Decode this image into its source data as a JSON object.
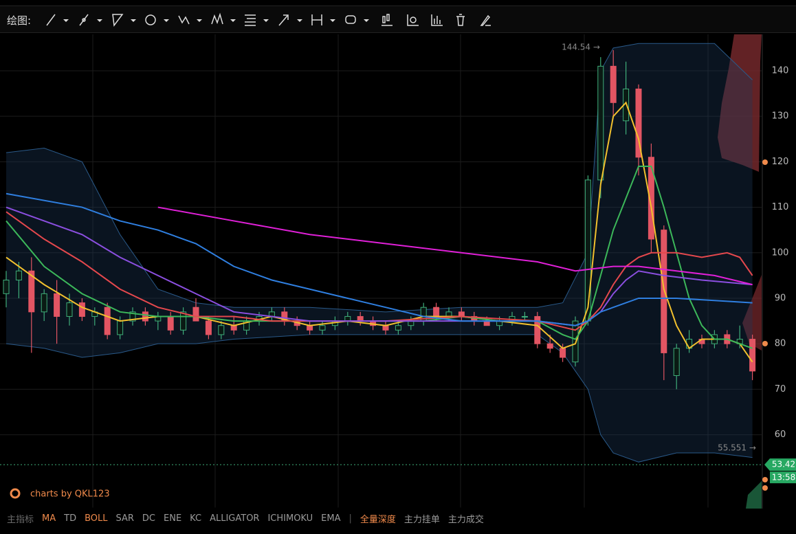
{
  "toolbar": {
    "label": "绘图:"
  },
  "chart_data": {
    "type": "candlestick",
    "ylim": [
      44,
      148
    ],
    "yticks": [
      60,
      70,
      80,
      90,
      100,
      110,
      120,
      130,
      140
    ],
    "grid": true,
    "up_color": "#3fae7a",
    "down_color": "#e25563",
    "open": [
      91,
      94,
      96,
      87,
      91,
      86,
      89,
      86,
      88,
      82,
      85,
      87,
      85,
      86,
      83,
      88,
      85,
      82,
      84,
      83,
      85,
      86,
      87,
      85,
      84,
      83,
      84,
      85,
      86,
      85,
      84,
      83,
      84,
      85,
      88,
      86,
      87,
      86,
      85,
      84,
      85,
      86,
      86,
      80,
      79,
      76,
      85,
      116,
      141,
      129,
      136,
      121,
      105,
      73,
      79,
      81,
      80,
      82,
      80,
      81
    ],
    "high": [
      96,
      98,
      99,
      92,
      94,
      91,
      90,
      88,
      89,
      86,
      88,
      88,
      87,
      87,
      88,
      90,
      86,
      85,
      86,
      86,
      87,
      88,
      88,
      86,
      85,
      85,
      86,
      87,
      87,
      86,
      85,
      85,
      86,
      89,
      89,
      88,
      88,
      87,
      86,
      86,
      87,
      87,
      87,
      82,
      80,
      86,
      117,
      143,
      144.54,
      142,
      137,
      124,
      106,
      80,
      83,
      82,
      83,
      83,
      84,
      82
    ],
    "low": [
      88,
      90,
      78,
      85,
      80,
      84,
      85,
      84,
      81,
      81,
      84,
      84,
      83,
      82,
      82,
      85,
      81,
      81,
      82,
      82,
      84,
      85,
      84,
      83,
      82,
      82,
      83,
      84,
      84,
      83,
      82,
      82,
      83,
      84,
      85,
      85,
      85,
      84,
      84,
      83,
      84,
      85,
      79,
      78,
      76,
      75,
      84,
      112,
      130,
      126,
      117,
      100,
      72,
      70,
      78,
      79,
      79,
      79,
      79,
      72
    ],
    "close": [
      94,
      96,
      87,
      91,
      86,
      89,
      86,
      87,
      82,
      85,
      87,
      85,
      86,
      83,
      87,
      85,
      82,
      84,
      83,
      85,
      86,
      87,
      85,
      84,
      83,
      84,
      85,
      86,
      85,
      84,
      83,
      84,
      85,
      88,
      86,
      87,
      86,
      85,
      84,
      85,
      86,
      86,
      80,
      79,
      77,
      85,
      116,
      141,
      133,
      136,
      121,
      103,
      78,
      79,
      81,
      80,
      82,
      80,
      81,
      74
    ],
    "lines": [
      {
        "color": "#f2c12e",
        "x": [
          0,
          3,
          6,
          9,
          12,
          15,
          18,
          21,
          24,
          27,
          30,
          33,
          36,
          39,
          42,
          44,
          45,
          46,
          47,
          48,
          49,
          50,
          51,
          52,
          53,
          54,
          55,
          56,
          57,
          58,
          59
        ],
        "values": [
          99,
          93,
          88,
          85,
          86,
          86,
          84,
          86,
          84,
          85,
          84,
          86,
          86,
          85,
          84,
          79,
          80,
          88,
          115,
          130,
          133,
          125,
          110,
          92,
          84,
          79,
          81,
          81,
          81,
          80,
          76
        ]
      },
      {
        "color": "#3cb85a",
        "x": [
          0,
          3,
          6,
          9,
          12,
          15,
          18,
          21,
          24,
          27,
          30,
          33,
          36,
          39,
          42,
          44,
          45,
          46,
          47,
          48,
          49,
          50,
          51,
          52,
          53,
          54,
          55,
          56,
          57,
          58,
          59
        ],
        "values": [
          107,
          97,
          91,
          87,
          86,
          86,
          85,
          85,
          85,
          85,
          85,
          85,
          86,
          85,
          85,
          82,
          81,
          85,
          95,
          105,
          112,
          119,
          119,
          110,
          100,
          90,
          84,
          81,
          81,
          80,
          79
        ]
      },
      {
        "color": "#e5484d",
        "x": [
          0,
          3,
          6,
          9,
          12,
          15,
          18,
          21,
          24,
          30,
          36,
          42,
          45,
          46,
          47,
          48,
          49,
          50,
          51,
          53,
          55,
          57,
          58,
          59
        ],
        "values": [
          109,
          103,
          98,
          92,
          88,
          86,
          86,
          85,
          85,
          85,
          86,
          85,
          83,
          85,
          88,
          93,
          97,
          99,
          100,
          100,
          99,
          100,
          99,
          95
        ]
      },
      {
        "color": "#8b4fe0",
        "x": [
          0,
          3,
          6,
          9,
          12,
          15,
          18,
          21,
          24,
          30,
          36,
          42,
          45,
          46,
          47,
          48,
          49,
          50,
          52,
          55,
          59
        ],
        "values": [
          110,
          107,
          104,
          99,
          95,
          91,
          87,
          86,
          85,
          85,
          85,
          85,
          84,
          85,
          87,
          91,
          94,
          96,
          95,
          94,
          93
        ]
      },
      {
        "color": "#2f7fe0",
        "x": [
          0,
          6,
          9,
          12,
          15,
          18,
          21,
          24,
          27,
          30,
          33,
          36,
          39,
          42,
          45,
          46,
          47,
          48,
          50,
          53,
          56,
          59
        ],
        "values": [
          113,
          110,
          107,
          105,
          102,
          97,
          94,
          92,
          90,
          88,
          86,
          85,
          85,
          85,
          84,
          85,
          87,
          88,
          90,
          90,
          89.5,
          89
        ]
      },
      {
        "color": "#e020d8",
        "x": [
          12,
          18,
          24,
          30,
          36,
          42,
          45,
          48,
          50,
          53,
          56,
          59
        ],
        "values": [
          110,
          107,
          104,
          102,
          100,
          98,
          96,
          97,
          97,
          96,
          95,
          93
        ]
      }
    ],
    "band": {
      "color": "#1e3a5c",
      "x": [
        0,
        3,
        6,
        9,
        12,
        15,
        18,
        24,
        30,
        36,
        42,
        44,
        46,
        47,
        48,
        50,
        53,
        56,
        59
      ],
      "upper": [
        122,
        123,
        120,
        104,
        92,
        89,
        88,
        88,
        87,
        88,
        88,
        89,
        100,
        140,
        145,
        146,
        146,
        146,
        138
      ],
      "lower": [
        80,
        79,
        77,
        78,
        80,
        80,
        81,
        82,
        82,
        82,
        82,
        78,
        70,
        60,
        56,
        54,
        56,
        56,
        55
      ]
    },
    "annotations": [
      {
        "text": "144.54 →",
        "value": 144.54
      },
      {
        "text": "55.551 →",
        "value": 55.551
      }
    ],
    "last_price": 53.42,
    "time_tag": "13:58"
  },
  "watermark": "charts by QKL123",
  "indicator_bar": [
    {
      "text": "主指标",
      "color": "#6b6b6b"
    },
    {
      "text": "MA",
      "color": "#f08a4b"
    },
    {
      "text": "TD",
      "color": "#9a9a9a"
    },
    {
      "text": "BOLL",
      "color": "#f08a4b"
    },
    {
      "text": "SAR",
      "color": "#9a9a9a"
    },
    {
      "text": "DC",
      "color": "#9a9a9a"
    },
    {
      "text": "ENE",
      "color": "#9a9a9a"
    },
    {
      "text": "KC",
      "color": "#9a9a9a"
    },
    {
      "text": "ALLIGATOR",
      "color": "#9a9a9a"
    },
    {
      "text": "ICHIMOKU",
      "color": "#9a9a9a"
    },
    {
      "text": "EMA",
      "color": "#9a9a9a"
    },
    {
      "text": "|",
      "color": "#555555"
    },
    {
      "text": "全量深度",
      "color": "#f08a4b"
    },
    {
      "text": "主力挂单",
      "color": "#9a9a9a"
    },
    {
      "text": "主力成交",
      "color": "#9a9a9a"
    }
  ]
}
